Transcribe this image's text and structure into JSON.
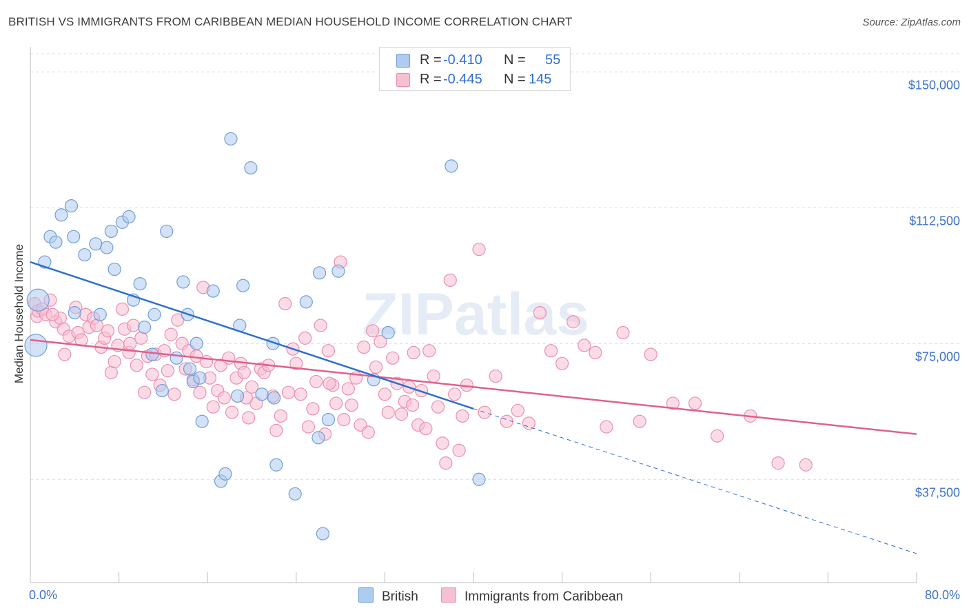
{
  "title": "BRITISH VS IMMIGRANTS FROM CARIBBEAN MEDIAN HOUSEHOLD INCOME CORRELATION CHART",
  "source": "Source: ZipAtlas.com",
  "watermark": "ZIPatlas",
  "colors": {
    "british_fill": "#aecbf0",
    "british_stroke": "#6f9fd8",
    "british_line": "#2d6fd0",
    "carib_fill": "#f7bfd2",
    "carib_stroke": "#ea8fb0",
    "carib_line": "#e0608f",
    "axis_label": "#3d72c9",
    "grid": "#dcdcdc"
  },
  "legend": {
    "british": {
      "r_label": "R =",
      "r_value": "-0.410",
      "n_label": "N =",
      "n_value": "55"
    },
    "carib": {
      "r_label": "R =",
      "r_value": "-0.445",
      "n_label": "N =",
      "n_value": "145"
    }
  },
  "bottom_legend": {
    "british": "British",
    "carib": "Immigrants from Caribbean"
  },
  "chart_data": {
    "type": "scatter",
    "xlabel": "",
    "ylabel": "Median Household Income",
    "xlim": [
      0,
      80
    ],
    "ylim": [
      9000,
      155000
    ],
    "x_tick_labels": {
      "left": "0.0%",
      "right": "80.0%"
    },
    "y_ticks": [
      {
        "value": 37500,
        "label": "$37,500"
      },
      {
        "value": 75000,
        "label": "$75,000"
      },
      {
        "value": 112500,
        "label": "$112,500"
      },
      {
        "value": 150000,
        "label": "$150,000"
      }
    ],
    "series": [
      {
        "name": "British",
        "points": [
          [
            1.3,
            97500
          ],
          [
            0.7,
            87000
          ],
          [
            0.5,
            74500
          ],
          [
            1.8,
            104500
          ],
          [
            2.3,
            103000
          ],
          [
            2.8,
            110500
          ],
          [
            3.7,
            113000
          ],
          [
            3.9,
            104500
          ],
          [
            4.9,
            99500
          ],
          [
            5.9,
            102500
          ],
          [
            6.9,
            101500
          ],
          [
            7.6,
            95500
          ],
          [
            7.3,
            106000
          ],
          [
            8.3,
            108500
          ],
          [
            8.9,
            110000
          ],
          [
            9.3,
            87000
          ],
          [
            9.9,
            91500
          ],
          [
            10.3,
            79500
          ],
          [
            11.2,
            83000
          ],
          [
            12.3,
            106000
          ],
          [
            11.0,
            72000
          ],
          [
            11.9,
            62000
          ],
          [
            13.2,
            71000
          ],
          [
            13.8,
            92000
          ],
          [
            14.2,
            83000
          ],
          [
            14.4,
            68000
          ],
          [
            14.7,
            64500
          ],
          [
            15.3,
            65500
          ],
          [
            15.5,
            53500
          ],
          [
            16.5,
            89500
          ],
          [
            17.2,
            37000
          ],
          [
            17.6,
            39000
          ],
          [
            18.1,
            131500
          ],
          [
            18.7,
            60500
          ],
          [
            18.9,
            80000
          ],
          [
            19.2,
            91000
          ],
          [
            19.9,
            123500
          ],
          [
            20.9,
            61000
          ],
          [
            21.9,
            75000
          ],
          [
            22.2,
            41500
          ],
          [
            23.9,
            33500
          ],
          [
            24.9,
            86500
          ],
          [
            26.0,
            49000
          ],
          [
            26.1,
            94500
          ],
          [
            26.4,
            22500
          ],
          [
            26.9,
            54000
          ],
          [
            27.8,
            95000
          ],
          [
            31.0,
            65000
          ],
          [
            32.3,
            78000
          ],
          [
            38.0,
            124000
          ],
          [
            40.5,
            37500
          ],
          [
            4.0,
            83500
          ],
          [
            6.3,
            83000
          ],
          [
            15.0,
            75000
          ],
          [
            22.0,
            60000
          ]
        ]
      },
      {
        "name": "Immigrants from Caribbean",
        "points": [
          [
            0.4,
            86000
          ],
          [
            0.6,
            82500
          ],
          [
            0.7,
            84000
          ],
          [
            1.1,
            84500
          ],
          [
            1.4,
            83000
          ],
          [
            1.8,
            87000
          ],
          [
            2.3,
            81000
          ],
          [
            2.7,
            82000
          ],
          [
            3.0,
            79000
          ],
          [
            3.1,
            72000
          ],
          [
            3.5,
            77000
          ],
          [
            4.1,
            85000
          ],
          [
            4.3,
            78000
          ],
          [
            4.6,
            76000
          ],
          [
            5.0,
            83000
          ],
          [
            5.3,
            79500
          ],
          [
            5.7,
            82000
          ],
          [
            6.0,
            80000
          ],
          [
            6.4,
            74000
          ],
          [
            6.7,
            76500
          ],
          [
            7.0,
            78500
          ],
          [
            7.3,
            67000
          ],
          [
            7.6,
            70000
          ],
          [
            7.9,
            74500
          ],
          [
            8.3,
            84500
          ],
          [
            8.5,
            79000
          ],
          [
            8.9,
            72500
          ],
          [
            9.3,
            80000
          ],
          [
            9.6,
            69000
          ],
          [
            10.0,
            76500
          ],
          [
            10.3,
            61500
          ],
          [
            10.6,
            71500
          ],
          [
            11.0,
            66500
          ],
          [
            11.3,
            72000
          ],
          [
            11.7,
            63500
          ],
          [
            12.1,
            73000
          ],
          [
            12.4,
            67500
          ],
          [
            12.7,
            77500
          ],
          [
            13.0,
            61000
          ],
          [
            13.3,
            81500
          ],
          [
            13.7,
            75000
          ],
          [
            14.0,
            68000
          ],
          [
            14.3,
            73000
          ],
          [
            14.7,
            65000
          ],
          [
            15.0,
            71500
          ],
          [
            15.3,
            61500
          ],
          [
            15.6,
            90500
          ],
          [
            15.9,
            70000
          ],
          [
            16.2,
            65500
          ],
          [
            16.5,
            57500
          ],
          [
            16.9,
            62000
          ],
          [
            17.2,
            69000
          ],
          [
            17.5,
            60000
          ],
          [
            17.9,
            71000
          ],
          [
            18.2,
            56000
          ],
          [
            18.6,
            65500
          ],
          [
            19.0,
            69500
          ],
          [
            19.3,
            67000
          ],
          [
            19.7,
            54500
          ],
          [
            20.0,
            63000
          ],
          [
            20.4,
            58500
          ],
          [
            20.8,
            68000
          ],
          [
            21.1,
            67000
          ],
          [
            21.5,
            69000
          ],
          [
            21.9,
            60500
          ],
          [
            22.2,
            51000
          ],
          [
            22.6,
            55000
          ],
          [
            23.0,
            86000
          ],
          [
            23.3,
            61500
          ],
          [
            23.7,
            73500
          ],
          [
            24.0,
            69500
          ],
          [
            24.4,
            61000
          ],
          [
            24.8,
            76500
          ],
          [
            25.1,
            52000
          ],
          [
            25.5,
            57000
          ],
          [
            25.8,
            64500
          ],
          [
            26.2,
            80000
          ],
          [
            26.6,
            50000
          ],
          [
            26.9,
            73000
          ],
          [
            27.3,
            63500
          ],
          [
            27.6,
            58500
          ],
          [
            28.0,
            97500
          ],
          [
            28.3,
            54000
          ],
          [
            28.7,
            62500
          ],
          [
            29.0,
            58000
          ],
          [
            29.4,
            65500
          ],
          [
            29.8,
            52500
          ],
          [
            30.1,
            74000
          ],
          [
            30.5,
            50500
          ],
          [
            30.9,
            78500
          ],
          [
            31.2,
            68500
          ],
          [
            31.6,
            75500
          ],
          [
            32.0,
            61000
          ],
          [
            32.3,
            56000
          ],
          [
            32.7,
            71000
          ],
          [
            33.1,
            64000
          ],
          [
            33.5,
            55500
          ],
          [
            33.8,
            59000
          ],
          [
            34.2,
            63000
          ],
          [
            34.6,
            72500
          ],
          [
            35.0,
            52500
          ],
          [
            35.3,
            62000
          ],
          [
            35.7,
            51500
          ],
          [
            36.0,
            73000
          ],
          [
            36.4,
            66000
          ],
          [
            36.8,
            57500
          ],
          [
            37.2,
            47500
          ],
          [
            37.5,
            42000
          ],
          [
            37.9,
            92500
          ],
          [
            38.3,
            61000
          ],
          [
            38.7,
            45500
          ],
          [
            39.0,
            55000
          ],
          [
            39.4,
            63500
          ],
          [
            40.5,
            101000
          ],
          [
            41.0,
            56000
          ],
          [
            42.0,
            66000
          ],
          [
            43.0,
            53500
          ],
          [
            44.0,
            56500
          ],
          [
            45.0,
            53000
          ],
          [
            46.0,
            83500
          ],
          [
            47.0,
            73000
          ],
          [
            48.0,
            69500
          ],
          [
            49.0,
            81000
          ],
          [
            50.0,
            74500
          ],
          [
            51.0,
            72500
          ],
          [
            52.0,
            52000
          ],
          [
            53.5,
            78000
          ],
          [
            55.0,
            53500
          ],
          [
            56.0,
            72000
          ],
          [
            58.0,
            58500
          ],
          [
            60.0,
            58500
          ],
          [
            62.0,
            49500
          ],
          [
            65.0,
            55000
          ],
          [
            67.5,
            42000
          ],
          [
            70.0,
            41500
          ],
          [
            2.0,
            83000
          ],
          [
            9.0,
            75000
          ],
          [
            19.5,
            60000
          ],
          [
            27.0,
            64000
          ],
          [
            34.5,
            58000
          ]
        ]
      }
    ],
    "trend_lines": [
      {
        "name": "British",
        "x": [
          0,
          40
        ],
        "y": [
          97500,
          57000
        ],
        "dashed_extension_to_x": 80,
        "dashed_end_y": 17000
      },
      {
        "name": "Immigrants from Caribbean",
        "x": [
          0,
          80
        ],
        "y": [
          76000,
          50000
        ]
      }
    ]
  }
}
